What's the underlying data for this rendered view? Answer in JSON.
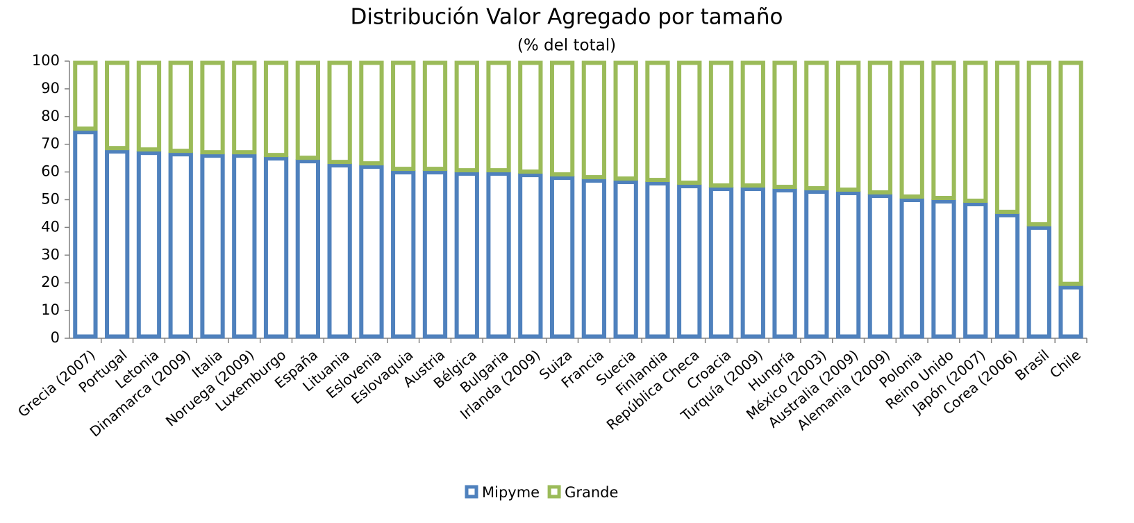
{
  "chart_data": {
    "type": "stacked_bar",
    "title": "Distribución Valor Agregado por tamaño",
    "subtitle": "(% del total)",
    "categories": [
      "Grecia (2007)",
      "Portugal",
      "Letonia",
      "Dinamarca (2009)",
      "Italia",
      "Noruega (2009)",
      "Luxemburgo",
      "España",
      "Lituania",
      "Eslovenia",
      "Eslovaquia",
      "Austria",
      "Bélgica",
      "Bulgaria",
      "Irlanda (2009)",
      "Suiza",
      "Francia",
      "Suecia",
      "Finlandia",
      "República Checa",
      "Croacia",
      "Turquía (2009)",
      "Hungría",
      "México (2003)",
      "Australia (2009)",
      "Alemania (2009)",
      "Polonia",
      "Reino Unido",
      "Japón (2007)",
      "Corea (2006)",
      "Brasil",
      "Chile"
    ],
    "series": [
      {
        "name": "Mipyme",
        "color": "#4f81bd",
        "values": [
          75,
          68,
          67.5,
          67,
          66.5,
          66.5,
          65.5,
          64.5,
          63,
          62.5,
          60.5,
          60.5,
          60,
          60,
          59.5,
          58.5,
          57.5,
          57,
          56.5,
          55.5,
          54.5,
          54.5,
          54,
          53.5,
          53,
          52,
          50.5,
          50,
          49,
          45,
          40.5,
          19
        ]
      },
      {
        "name": "Grande",
        "color": "#9bbb59",
        "values": [
          25,
          32,
          32.5,
          33,
          33.5,
          33.5,
          34.5,
          35.5,
          37,
          37.5,
          39.5,
          39.5,
          40,
          40,
          40.5,
          41.5,
          42.5,
          43,
          43.5,
          44.5,
          45.5,
          45.5,
          46,
          46.5,
          47,
          48,
          49.5,
          50,
          51,
          55,
          59.5,
          81
        ]
      }
    ],
    "ylim": [
      0,
      100
    ],
    "yticks": [
      0,
      10,
      20,
      30,
      40,
      50,
      60,
      70,
      80,
      90,
      100
    ],
    "legend": "bottom"
  }
}
